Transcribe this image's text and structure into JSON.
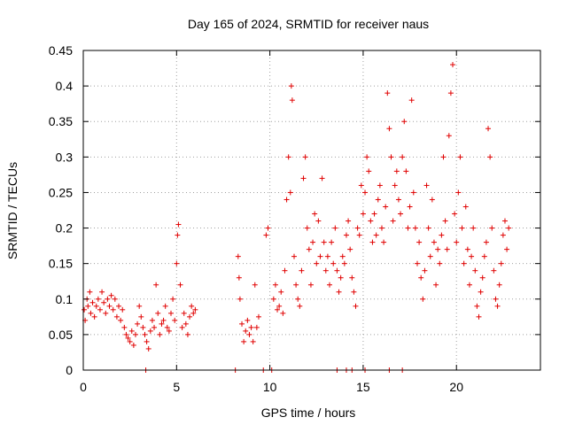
{
  "chart_data": {
    "type": "scatter",
    "title": "Day 165 of 2024, SRMTID for receiver naus",
    "xlabel": "GPS time / hours",
    "ylabel": "SRMTID / TECUs",
    "xlim": [
      0,
      24.5
    ],
    "ylim": [
      0,
      0.45
    ],
    "x_ticks": [
      0,
      5,
      10,
      15,
      20
    ],
    "x_tick_labels": [
      "0",
      "5",
      "10",
      "15",
      "20"
    ],
    "y_ticks": [
      0,
      0.05,
      0.1,
      0.15,
      0.2,
      0.25,
      0.3,
      0.35,
      0.4,
      0.45
    ],
    "y_tick_labels": [
      "0",
      "0.05",
      "0.1",
      "0.15",
      "0.2",
      "0.25",
      "0.3",
      "0.35",
      "0.4",
      "0.45"
    ],
    "grid": true,
    "marker": "plus",
    "color": "#e00000",
    "series": [
      {
        "name": "SRMTID",
        "points": [
          [
            0.05,
            0.085
          ],
          [
            0.1,
            0.07
          ],
          [
            0.2,
            0.1
          ],
          [
            0.25,
            0.09
          ],
          [
            0.35,
            0.11
          ],
          [
            0.4,
            0.08
          ],
          [
            0.5,
            0.095
          ],
          [
            0.6,
            0.075
          ],
          [
            0.7,
            0.09
          ],
          [
            0.8,
            0.1
          ],
          [
            0.9,
            0.085
          ],
          [
            1.0,
            0.11
          ],
          [
            1.1,
            0.095
          ],
          [
            1.2,
            0.08
          ],
          [
            1.3,
            0.1
          ],
          [
            1.4,
            0.09
          ],
          [
            1.5,
            0.105
          ],
          [
            1.6,
            0.085
          ],
          [
            1.7,
            0.1
          ],
          [
            1.8,
            0.075
          ],
          [
            1.9,
            0.09
          ],
          [
            2.0,
            0.07
          ],
          [
            2.1,
            0.085
          ],
          [
            2.2,
            0.06
          ],
          [
            2.3,
            0.05
          ],
          [
            2.4,
            0.045
          ],
          [
            2.5,
            0.04
          ],
          [
            2.6,
            0.055
          ],
          [
            2.7,
            0.035
          ],
          [
            2.8,
            0.05
          ],
          [
            2.9,
            0.065
          ],
          [
            3.0,
            0.09
          ],
          [
            3.1,
            0.075
          ],
          [
            3.2,
            0.06
          ],
          [
            3.3,
            0.05
          ],
          [
            3.4,
            0.04
          ],
          [
            3.5,
            0.03
          ],
          [
            3.6,
            0.055
          ],
          [
            3.7,
            0.07
          ],
          [
            3.8,
            0.06
          ],
          [
            3.9,
            0.12
          ],
          [
            4.0,
            0.08
          ],
          [
            4.1,
            0.05
          ],
          [
            4.2,
            0.065
          ],
          [
            4.3,
            0.07
          ],
          [
            4.4,
            0.09
          ],
          [
            4.5,
            0.06
          ],
          [
            4.6,
            0.055
          ],
          [
            4.7,
            0.08
          ],
          [
            4.8,
            0.1
          ],
          [
            4.9,
            0.07
          ],
          [
            5.0,
            0.15
          ],
          [
            5.05,
            0.19
          ],
          [
            5.1,
            0.205
          ],
          [
            5.2,
            0.12
          ],
          [
            5.3,
            0.06
          ],
          [
            5.4,
            0.08
          ],
          [
            5.5,
            0.065
          ],
          [
            5.6,
            0.05
          ],
          [
            5.7,
            0.075
          ],
          [
            5.8,
            0.09
          ],
          [
            5.9,
            0.08
          ],
          [
            6.0,
            0.085
          ],
          [
            8.3,
            0.16
          ],
          [
            8.35,
            0.13
          ],
          [
            8.4,
            0.1
          ],
          [
            8.5,
            0.065
          ],
          [
            8.6,
            0.04
          ],
          [
            8.7,
            0.055
          ],
          [
            8.8,
            0.07
          ],
          [
            8.9,
            0.05
          ],
          [
            9.0,
            0.06
          ],
          [
            9.1,
            0.04
          ],
          [
            9.2,
            0.12
          ],
          [
            9.3,
            0.06
          ],
          [
            9.4,
            0.075
          ],
          [
            9.8,
            0.19
          ],
          [
            9.9,
            0.2
          ],
          [
            10.2,
            0.1
          ],
          [
            10.3,
            0.12
          ],
          [
            10.4,
            0.085
          ],
          [
            10.5,
            0.09
          ],
          [
            10.6,
            0.11
          ],
          [
            10.7,
            0.08
          ],
          [
            10.8,
            0.14
          ],
          [
            10.9,
            0.24
          ],
          [
            11.0,
            0.3
          ],
          [
            11.1,
            0.25
          ],
          [
            11.15,
            0.4
          ],
          [
            11.2,
            0.38
          ],
          [
            11.3,
            0.16
          ],
          [
            11.4,
            0.12
          ],
          [
            11.5,
            0.1
          ],
          [
            11.6,
            0.09
          ],
          [
            11.7,
            0.14
          ],
          [
            11.8,
            0.27
          ],
          [
            11.9,
            0.3
          ],
          [
            12.0,
            0.2
          ],
          [
            12.1,
            0.17
          ],
          [
            12.2,
            0.12
          ],
          [
            12.3,
            0.18
          ],
          [
            12.4,
            0.22
          ],
          [
            12.5,
            0.15
          ],
          [
            12.6,
            0.21
          ],
          [
            12.7,
            0.16
          ],
          [
            12.8,
            0.27
          ],
          [
            12.9,
            0.18
          ],
          [
            13.0,
            0.14
          ],
          [
            13.1,
            0.16
          ],
          [
            13.2,
            0.12
          ],
          [
            13.3,
            0.18
          ],
          [
            13.4,
            0.15
          ],
          [
            13.5,
            0.2
          ],
          [
            13.6,
            0.14
          ],
          [
            13.7,
            0.11
          ],
          [
            13.8,
            0.13
          ],
          [
            13.9,
            0.16
          ],
          [
            14.0,
            0.15
          ],
          [
            14.1,
            0.19
          ],
          [
            14.2,
            0.21
          ],
          [
            14.3,
            0.17
          ],
          [
            14.4,
            0.13
          ],
          [
            14.5,
            0.11
          ],
          [
            14.6,
            0.09
          ],
          [
            14.7,
            0.2
          ],
          [
            14.8,
            0.19
          ],
          [
            14.9,
            0.26
          ],
          [
            15.0,
            0.22
          ],
          [
            15.1,
            0.25
          ],
          [
            15.2,
            0.3
          ],
          [
            15.3,
            0.28
          ],
          [
            15.4,
            0.21
          ],
          [
            15.5,
            0.18
          ],
          [
            15.6,
            0.22
          ],
          [
            15.7,
            0.19
          ],
          [
            15.8,
            0.24
          ],
          [
            15.9,
            0.26
          ],
          [
            16.0,
            0.2
          ],
          [
            16.1,
            0.18
          ],
          [
            16.2,
            0.23
          ],
          [
            16.3,
            0.39
          ],
          [
            16.4,
            0.34
          ],
          [
            16.5,
            0.3
          ],
          [
            16.6,
            0.21
          ],
          [
            16.7,
            0.26
          ],
          [
            16.8,
            0.28
          ],
          [
            16.9,
            0.24
          ],
          [
            17.0,
            0.22
          ],
          [
            17.1,
            0.3
          ],
          [
            17.2,
            0.35
          ],
          [
            17.3,
            0.28
          ],
          [
            17.4,
            0.2
          ],
          [
            17.5,
            0.23
          ],
          [
            17.6,
            0.38
          ],
          [
            17.7,
            0.25
          ],
          [
            17.8,
            0.2
          ],
          [
            17.9,
            0.15
          ],
          [
            18.0,
            0.18
          ],
          [
            18.1,
            0.13
          ],
          [
            18.2,
            0.1
          ],
          [
            18.3,
            0.14
          ],
          [
            18.4,
            0.26
          ],
          [
            18.5,
            0.2
          ],
          [
            18.6,
            0.16
          ],
          [
            18.7,
            0.24
          ],
          [
            18.8,
            0.18
          ],
          [
            18.9,
            0.12
          ],
          [
            19.0,
            0.17
          ],
          [
            19.1,
            0.15
          ],
          [
            19.2,
            0.19
          ],
          [
            19.3,
            0.3
          ],
          [
            19.4,
            0.21
          ],
          [
            19.5,
            0.17
          ],
          [
            19.6,
            0.33
          ],
          [
            19.7,
            0.39
          ],
          [
            19.8,
            0.43
          ],
          [
            19.9,
            0.22
          ],
          [
            20.0,
            0.18
          ],
          [
            20.1,
            0.25
          ],
          [
            20.2,
            0.3
          ],
          [
            20.3,
            0.2
          ],
          [
            20.4,
            0.15
          ],
          [
            20.5,
            0.23
          ],
          [
            20.6,
            0.17
          ],
          [
            20.7,
            0.12
          ],
          [
            20.8,
            0.16
          ],
          [
            20.9,
            0.2
          ],
          [
            21.0,
            0.14
          ],
          [
            21.1,
            0.09
          ],
          [
            21.2,
            0.075
          ],
          [
            21.3,
            0.11
          ],
          [
            21.4,
            0.13
          ],
          [
            21.5,
            0.16
          ],
          [
            21.6,
            0.18
          ],
          [
            21.7,
            0.34
          ],
          [
            21.8,
            0.3
          ],
          [
            21.9,
            0.2
          ],
          [
            22.0,
            0.14
          ],
          [
            22.1,
            0.1
          ],
          [
            22.2,
            0.09
          ],
          [
            22.3,
            0.12
          ],
          [
            22.4,
            0.15
          ],
          [
            22.5,
            0.19
          ],
          [
            22.6,
            0.21
          ],
          [
            22.7,
            0.17
          ],
          [
            22.8,
            0.2
          ],
          [
            3.35,
            0
          ],
          [
            8.15,
            0
          ],
          [
            9.65,
            0
          ],
          [
            10.1,
            0
          ],
          [
            13.6,
            0
          ],
          [
            14.1,
            0
          ],
          [
            14.4,
            0
          ],
          [
            15.1,
            0
          ],
          [
            16.4,
            0
          ],
          [
            17.1,
            0
          ]
        ]
      }
    ]
  }
}
